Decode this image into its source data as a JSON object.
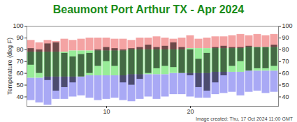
{
  "chart_data": {
    "type": "bar",
    "title": "Beaumont Port Arthur TX - Apr 2024",
    "y_label": "Temperature (deg F)",
    "caption": "Image created: Thu, 17 Oct 2024 11:00 GMT",
    "x": [
      1,
      2,
      3,
      4,
      5,
      6,
      7,
      8,
      9,
      10,
      11,
      12,
      13,
      14,
      15,
      16,
      17,
      18,
      19,
      20,
      21,
      22,
      23,
      24,
      25,
      26,
      27,
      28,
      29,
      30
    ],
    "xlim": [
      0.5,
      30.5
    ],
    "xticks": [
      10,
      20
    ],
    "ylim": [
      32,
      100
    ],
    "yticks": [
      40,
      50,
      60,
      70,
      80,
      90,
      100
    ],
    "grid": false,
    "series": [
      {
        "color": "#f4a3a3",
        "low": [
          78,
          78,
          78,
          78,
          78,
          79,
          79,
          79,
          79,
          79,
          79,
          79,
          80,
          80,
          80,
          80,
          80,
          80,
          80,
          81,
          81,
          81,
          81,
          81,
          81,
          81,
          82,
          82,
          82,
          82
        ],
        "high": [
          88,
          86,
          88,
          87,
          89,
          88,
          89,
          90,
          90,
          90,
          89,
          89,
          88,
          90,
          90,
          91,
          90,
          89,
          90,
          92,
          89,
          90,
          91,
          91,
          92,
          93,
          92,
          93,
          92,
          93
        ]
      },
      {
        "color": "#a9a9f5",
        "low": [
          37,
          35,
          33,
          38,
          38,
          40,
          41,
          39,
          37,
          38,
          39,
          37,
          36,
          38,
          40,
          38,
          40,
          42,
          42,
          40,
          39,
          39,
          42,
          43,
          44,
          41,
          44,
          45,
          43,
          44
        ],
        "high": [
          56,
          56,
          57,
          57,
          57,
          57,
          57,
          58,
          58,
          58,
          58,
          58,
          59,
          59,
          59,
          59,
          59,
          60,
          60,
          60,
          60,
          60,
          61,
          61,
          61,
          61,
          62,
          62,
          62,
          62
        ]
      },
      {
        "color": "#98ec98",
        "low": [
          56,
          56,
          57,
          57,
          57,
          57,
          57,
          58,
          58,
          58,
          58,
          58,
          59,
          59,
          59,
          59,
          59,
          60,
          60,
          60,
          60,
          60,
          61,
          61,
          61,
          61,
          62,
          62,
          62,
          62
        ],
        "high": [
          78,
          78,
          78,
          78,
          78,
          79,
          79,
          79,
          79,
          79,
          79,
          79,
          80,
          80,
          80,
          80,
          80,
          80,
          80,
          81,
          81,
          81,
          81,
          81,
          81,
          81,
          82,
          82,
          82,
          82
        ]
      },
      {
        "color": "#000000",
        "low": [
          67,
          60,
          54,
          45,
          48,
          52,
          57,
          60,
          66,
          70,
          66,
          52,
          50,
          55,
          60,
          64,
          66,
          65,
          60,
          58,
          48,
          45,
          52,
          58,
          66,
          70,
          62,
          64,
          64,
          66
        ],
        "high": [
          81,
          80,
          85,
          86,
          77,
          74,
          76,
          77,
          80,
          82,
          81,
          80,
          81,
          82,
          84,
          82,
          83,
          86,
          82,
          80,
          72,
          77,
          82,
          83,
          82,
          82,
          83,
          82,
          82,
          84
        ]
      }
    ]
  }
}
